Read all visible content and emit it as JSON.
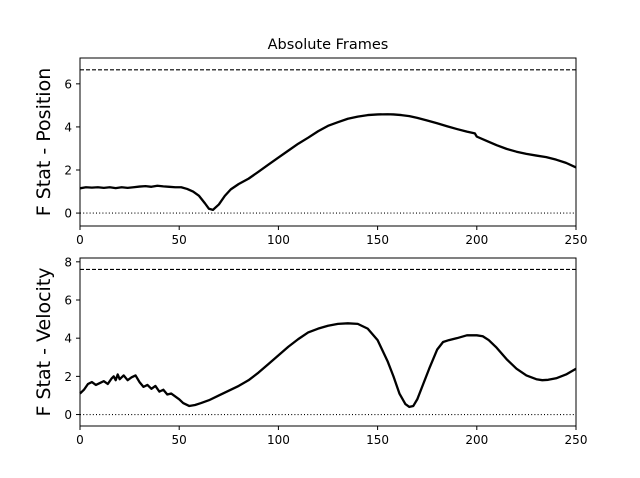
{
  "chart_data": [
    {
      "type": "line",
      "title": "Absolute Frames",
      "xlabel": "",
      "ylabel": "F Stat - Position",
      "xlim": [
        0,
        250
      ],
      "ylim": [
        -0.6,
        7.2
      ],
      "xticks": [
        0,
        50,
        100,
        150,
        200,
        250
      ],
      "yticks": [
        0,
        2,
        4,
        6
      ],
      "grid": false,
      "series": [
        {
          "style": "solid",
          "color": "#000000",
          "x": [
            0,
            3,
            6,
            9,
            12,
            15,
            18,
            21,
            24,
            27,
            30,
            33,
            36,
            39,
            42,
            45,
            48,
            51,
            54,
            57,
            60,
            63,
            65,
            67,
            70,
            73,
            76,
            80,
            85,
            90,
            95,
            100,
            105,
            110,
            115,
            120,
            125,
            130,
            135,
            140,
            145,
            150,
            155,
            158,
            162,
            166,
            170,
            175,
            180,
            185,
            190,
            195,
            199,
            200,
            205,
            210,
            215,
            220,
            225,
            230,
            235,
            240,
            245,
            250
          ],
          "y": [
            1.15,
            1.2,
            1.18,
            1.2,
            1.17,
            1.2,
            1.16,
            1.2,
            1.17,
            1.2,
            1.23,
            1.25,
            1.22,
            1.27,
            1.24,
            1.22,
            1.2,
            1.2,
            1.12,
            1.0,
            0.8,
            0.45,
            0.2,
            0.15,
            0.4,
            0.8,
            1.1,
            1.35,
            1.6,
            1.92,
            2.25,
            2.58,
            2.9,
            3.22,
            3.5,
            3.8,
            4.05,
            4.22,
            4.38,
            4.48,
            4.55,
            4.58,
            4.59,
            4.58,
            4.55,
            4.5,
            4.42,
            4.3,
            4.17,
            4.03,
            3.9,
            3.78,
            3.7,
            3.55,
            3.35,
            3.15,
            2.98,
            2.85,
            2.75,
            2.67,
            2.6,
            2.48,
            2.33,
            2.12
          ]
        },
        {
          "name": "",
          "style": "dashed",
          "color": "#000000",
          "x": [
            0,
            250
          ],
          "y": [
            6.65,
            6.65
          ]
        },
        {
          "name": "",
          "style": "dotted",
          "color": "#000000",
          "x": [
            0,
            250
          ],
          "y": [
            0,
            0
          ]
        }
      ]
    },
    {
      "type": "line",
      "title": "",
      "xlabel": "",
      "ylabel": "F Stat - Velocity",
      "xlim": [
        0,
        250
      ],
      "ylim": [
        -0.6,
        8.2
      ],
      "xticks": [
        0,
        50,
        100,
        150,
        200,
        250
      ],
      "yticks": [
        0,
        2,
        4,
        6,
        8
      ],
      "grid": false,
      "series": [
        {
          "style": "solid",
          "color": "#000000",
          "x": [
            0,
            2,
            4,
            6,
            8,
            10,
            12,
            14,
            16,
            17,
            18,
            19,
            20,
            21,
            22,
            24,
            26,
            28,
            30,
            32,
            34,
            36,
            38,
            40,
            42,
            44,
            46,
            48,
            50,
            52,
            55,
            58,
            61,
            65,
            70,
            75,
            80,
            85,
            90,
            95,
            100,
            105,
            110,
            115,
            120,
            125,
            130,
            135,
            140,
            145,
            150,
            155,
            158,
            161,
            164,
            166,
            168,
            170,
            173,
            176,
            180,
            183,
            186,
            190,
            195,
            197,
            200,
            203,
            206,
            210,
            215,
            220,
            225,
            230,
            233,
            236,
            240,
            245,
            250
          ],
          "y": [
            1.1,
            1.3,
            1.6,
            1.7,
            1.55,
            1.65,
            1.75,
            1.6,
            1.9,
            2.0,
            1.8,
            2.1,
            1.85,
            1.95,
            2.05,
            1.8,
            1.95,
            2.05,
            1.7,
            1.45,
            1.55,
            1.35,
            1.5,
            1.2,
            1.3,
            1.05,
            1.1,
            0.95,
            0.8,
            0.6,
            0.45,
            0.5,
            0.6,
            0.75,
            1.0,
            1.25,
            1.5,
            1.8,
            2.2,
            2.65,
            3.1,
            3.55,
            3.95,
            4.3,
            4.5,
            4.65,
            4.75,
            4.78,
            4.75,
            4.5,
            3.9,
            2.8,
            2.0,
            1.1,
            0.55,
            0.4,
            0.45,
            0.8,
            1.6,
            2.4,
            3.4,
            3.8,
            3.9,
            4.0,
            4.15,
            4.15,
            4.15,
            4.1,
            3.9,
            3.5,
            2.9,
            2.4,
            2.05,
            1.85,
            1.8,
            1.82,
            1.9,
            2.1,
            2.4
          ]
        },
        {
          "name": "",
          "style": "dashed",
          "color": "#000000",
          "x": [
            0,
            250
          ],
          "y": [
            7.6,
            7.6
          ]
        },
        {
          "name": "",
          "style": "dotted",
          "color": "#000000",
          "x": [
            0,
            250
          ],
          "y": [
            0,
            0
          ]
        }
      ]
    }
  ]
}
